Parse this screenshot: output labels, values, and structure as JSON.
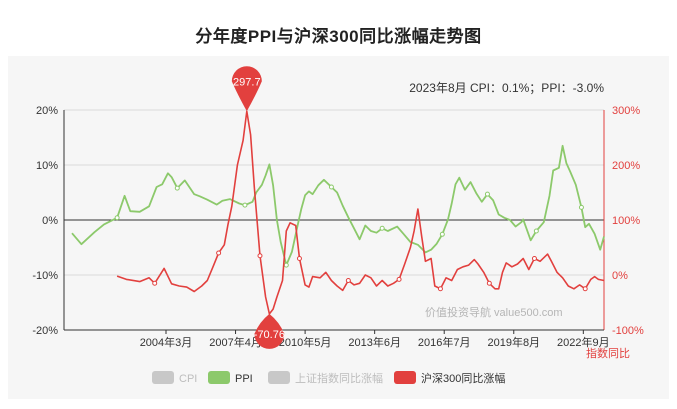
{
  "title": "分年度PPI与沪深300同比涨幅走势图",
  "info_text": "2023年8月    CPI：0.1%；PPI：-3.0%",
  "watermark": "价值投资导航 value500.com",
  "colors": {
    "ppi": "#8cc96b",
    "hs300": "#e2403e",
    "inactive": "#c8c8c8",
    "axis_right": "#e2403e"
  },
  "chart_data": {
    "type": "line",
    "x_range": [
      "2000-01",
      "2023-08"
    ],
    "x_tick_labels": [
      "2004年3月",
      "2007年4月",
      "2010年5月",
      "2013年6月",
      "2016年7月",
      "2019年8月",
      "2022年9月"
    ],
    "y_left": {
      "ticks": [
        "20%",
        "10%",
        "0%",
        "-10%",
        "-20%"
      ],
      "range": [
        -20,
        20
      ]
    },
    "y_right": {
      "ticks": [
        "300%",
        "200%",
        "100%",
        "0%",
        "-100%"
      ],
      "range": [
        -100,
        300
      ],
      "label": "指数同比"
    },
    "legend": [
      "CPI",
      "PPI",
      "上证指数同比涨幅",
      "沪深300同比涨幅"
    ],
    "legend_active": [
      false,
      true,
      false,
      true
    ],
    "series": [
      {
        "name": "PPI",
        "axis": "left",
        "points": [
          [
            "2000-01",
            -2.4
          ],
          [
            "2000-06",
            -4.4
          ],
          [
            "2001-01",
            -2.2
          ],
          [
            "2001-06",
            -0.8
          ],
          [
            "2002-01",
            0.4
          ],
          [
            "2002-05",
            4.4
          ],
          [
            "2002-08",
            1.6
          ],
          [
            "2003-01",
            1.5
          ],
          [
            "2003-06",
            2.5
          ],
          [
            "2003-10",
            6.0
          ],
          [
            "2004-01",
            6.5
          ],
          [
            "2004-04",
            8.5
          ],
          [
            "2004-06",
            7.8
          ],
          [
            "2004-09",
            5.8
          ],
          [
            "2005-01",
            7.2
          ],
          [
            "2005-06",
            4.7
          ],
          [
            "2005-09",
            4.3
          ],
          [
            "2006-01",
            3.7
          ],
          [
            "2006-06",
            2.8
          ],
          [
            "2006-09",
            3.5
          ],
          [
            "2007-01",
            3.8
          ],
          [
            "2007-06",
            3.0
          ],
          [
            "2007-09",
            2.7
          ],
          [
            "2008-01",
            3.3
          ],
          [
            "2008-03",
            5.0
          ],
          [
            "2008-06",
            6.4
          ],
          [
            "2008-08",
            8.1
          ],
          [
            "2008-10",
            10.1
          ],
          [
            "2008-12",
            6.3
          ],
          [
            "2009-02",
            0.0
          ],
          [
            "2009-04",
            -4.0
          ],
          [
            "2009-07",
            -8.2
          ],
          [
            "2009-10",
            -5.8
          ],
          [
            "2010-01",
            -1.0
          ],
          [
            "2010-03",
            2.0
          ],
          [
            "2010-05",
            4.5
          ],
          [
            "2010-07",
            5.2
          ],
          [
            "2010-09",
            4.7
          ],
          [
            "2010-12",
            6.3
          ],
          [
            "2011-03",
            7.3
          ],
          [
            "2011-07",
            6.0
          ],
          [
            "2011-10",
            5.0
          ],
          [
            "2012-01",
            2.6
          ],
          [
            "2012-04",
            0.5
          ],
          [
            "2012-07",
            -1.5
          ],
          [
            "2012-10",
            -3.5
          ],
          [
            "2013-01",
            -1.0
          ],
          [
            "2013-04",
            -2.0
          ],
          [
            "2013-07",
            -2.3
          ],
          [
            "2013-10",
            -1.5
          ],
          [
            "2014-01",
            -2.0
          ],
          [
            "2014-06",
            -1.2
          ],
          [
            "2014-09",
            -2.4
          ],
          [
            "2015-01",
            -4.0
          ],
          [
            "2015-05",
            -4.5
          ],
          [
            "2015-09",
            -5.9
          ],
          [
            "2015-12",
            -5.4
          ],
          [
            "2016-03",
            -4.3
          ],
          [
            "2016-06",
            -2.6
          ],
          [
            "2016-09",
            0.1
          ],
          [
            "2016-11",
            3.0
          ],
          [
            "2017-01",
            6.5
          ],
          [
            "2017-03",
            7.7
          ],
          [
            "2017-06",
            5.5
          ],
          [
            "2017-09",
            6.9
          ],
          [
            "2017-12",
            4.9
          ],
          [
            "2018-03",
            3.3
          ],
          [
            "2018-06",
            4.7
          ],
          [
            "2018-09",
            3.6
          ],
          [
            "2018-12",
            1.0
          ],
          [
            "2019-03",
            0.4
          ],
          [
            "2019-06",
            0.0
          ],
          [
            "2019-09",
            -1.2
          ],
          [
            "2019-12",
            -0.4
          ],
          [
            "2020-01",
            0.1
          ],
          [
            "2020-05",
            -3.7
          ],
          [
            "2020-08",
            -2.0
          ],
          [
            "2020-12",
            -0.4
          ],
          [
            "2021-03",
            4.4
          ],
          [
            "2021-05",
            9.0
          ],
          [
            "2021-08",
            9.5
          ],
          [
            "2021-10",
            13.5
          ],
          [
            "2021-12",
            10.3
          ],
          [
            "2022-02",
            8.8
          ],
          [
            "2022-05",
            6.4
          ],
          [
            "2022-08",
            2.3
          ],
          [
            "2022-10",
            -1.3
          ],
          [
            "2022-12",
            -0.7
          ],
          [
            "2023-03",
            -2.5
          ],
          [
            "2023-06",
            -5.4
          ],
          [
            "2023-08",
            -3.0
          ]
        ]
      },
      {
        "name": "沪深300同比涨幅",
        "axis": "right",
        "points": [
          [
            "2002-01",
            -2
          ],
          [
            "2002-06",
            -8
          ],
          [
            "2003-01",
            -12
          ],
          [
            "2003-06",
            -5
          ],
          [
            "2003-09",
            -15
          ],
          [
            "2004-02",
            12
          ],
          [
            "2004-06",
            -16
          ],
          [
            "2004-10",
            -20
          ],
          [
            "2005-02",
            -22
          ],
          [
            "2005-06",
            -30
          ],
          [
            "2005-10",
            -20
          ],
          [
            "2006-01",
            -10
          ],
          [
            "2006-04",
            15
          ],
          [
            "2006-07",
            40
          ],
          [
            "2006-10",
            55
          ],
          [
            "2006-12",
            92
          ],
          [
            "2007-02",
            125
          ],
          [
            "2007-05",
            200
          ],
          [
            "2007-08",
            245
          ],
          [
            "2007-10",
            297.7
          ],
          [
            "2007-12",
            255
          ],
          [
            "2008-02",
            160
          ],
          [
            "2008-05",
            35
          ],
          [
            "2008-08",
            -40
          ],
          [
            "2008-10",
            -70.76
          ],
          [
            "2008-12",
            -62
          ],
          [
            "2009-02",
            -40
          ],
          [
            "2009-05",
            -10
          ],
          [
            "2009-07",
            80
          ],
          [
            "2009-09",
            95
          ],
          [
            "2009-12",
            90
          ],
          [
            "2010-02",
            30
          ],
          [
            "2010-05",
            -18
          ],
          [
            "2010-07",
            -22
          ],
          [
            "2010-09",
            -3
          ],
          [
            "2011-01",
            -5
          ],
          [
            "2011-04",
            5
          ],
          [
            "2011-07",
            -10
          ],
          [
            "2011-10",
            -20
          ],
          [
            "2012-01",
            -28
          ],
          [
            "2012-04",
            -10
          ],
          [
            "2012-07",
            -18
          ],
          [
            "2012-10",
            -15
          ],
          [
            "2013-01",
            0
          ],
          [
            "2013-04",
            -5
          ],
          [
            "2013-07",
            -20
          ],
          [
            "2013-10",
            -10
          ],
          [
            "2014-01",
            -20
          ],
          [
            "2014-04",
            -15
          ],
          [
            "2014-07",
            -8
          ],
          [
            "2014-10",
            20
          ],
          [
            "2015-01",
            50
          ],
          [
            "2015-03",
            80
          ],
          [
            "2015-05",
            120
          ],
          [
            "2015-07",
            70
          ],
          [
            "2015-09",
            25
          ],
          [
            "2015-12",
            30
          ],
          [
            "2016-02",
            -20
          ],
          [
            "2016-05",
            -25
          ],
          [
            "2016-08",
            -5
          ],
          [
            "2016-11",
            -10
          ],
          [
            "2017-02",
            10
          ],
          [
            "2017-05",
            15
          ],
          [
            "2017-08",
            18
          ],
          [
            "2017-11",
            28
          ],
          [
            "2018-01",
            20
          ],
          [
            "2018-04",
            5
          ],
          [
            "2018-07",
            -15
          ],
          [
            "2018-10",
            -25
          ],
          [
            "2018-12",
            -25
          ],
          [
            "2019-02",
            5
          ],
          [
            "2019-04",
            22
          ],
          [
            "2019-07",
            15
          ],
          [
            "2019-10",
            20
          ],
          [
            "2020-01",
            30
          ],
          [
            "2020-04",
            10
          ],
          [
            "2020-07",
            30
          ],
          [
            "2020-10",
            25
          ],
          [
            "2021-02",
            38
          ],
          [
            "2021-04",
            25
          ],
          [
            "2021-07",
            5
          ],
          [
            "2021-10",
            -5
          ],
          [
            "2022-01",
            -20
          ],
          [
            "2022-04",
            -25
          ],
          [
            "2022-07",
            -18
          ],
          [
            "2022-10",
            -25
          ],
          [
            "2023-01",
            -8
          ],
          [
            "2023-03",
            -3
          ],
          [
            "2023-05",
            -8
          ],
          [
            "2023-08",
            -10
          ]
        ]
      }
    ],
    "markers": [
      {
        "series": "沪深300同比涨幅",
        "date": "2007-10",
        "value": 297.7,
        "label": "297.7",
        "type": "max"
      },
      {
        "series": "沪深300同比涨幅",
        "date": "2008-10",
        "value": -70.76,
        "label": "-70.76",
        "type": "min"
      }
    ]
  }
}
